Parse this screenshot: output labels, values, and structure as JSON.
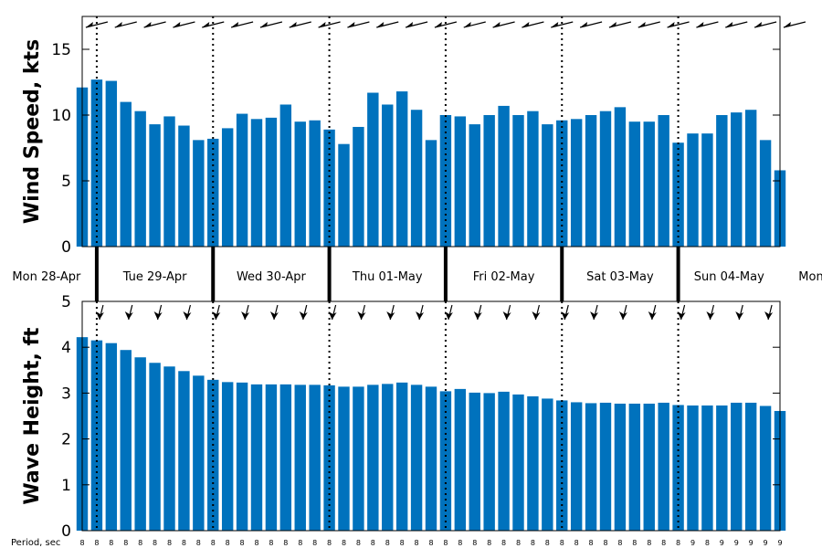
{
  "chart_data": [
    {
      "type": "bar",
      "ylabel": "Wind Speed, kts",
      "ylim": [
        0,
        17.5
      ],
      "yticks": [
        0,
        5,
        10,
        15
      ],
      "grid": false,
      "color": "#0072BD",
      "values": [
        12.1,
        12.7,
        12.6,
        11.0,
        10.3,
        9.3,
        9.9,
        9.2,
        8.1,
        8.2,
        9.0,
        10.1,
        9.7,
        9.8,
        10.8,
        9.5,
        9.6,
        8.9,
        7.8,
        9.1,
        11.7,
        10.8,
        11.8,
        10.4,
        8.1,
        10.0,
        9.9,
        9.3,
        10.0,
        10.7,
        10.0,
        10.3,
        9.3,
        9.6,
        9.7,
        10.0,
        10.3,
        10.6,
        9.5,
        9.5,
        10.0,
        7.9,
        8.6,
        8.6,
        10.0,
        10.2,
        10.4,
        8.1,
        5.8
      ],
      "direction_arrows": [
        "wind-arrow",
        "wind-arrow",
        "wind-arrow",
        "wind-arrow",
        "wind-arrow",
        "wind-arrow",
        "wind-arrow",
        "wind-arrow",
        "wind-arrow",
        "wind-arrow",
        "wind-arrow",
        "wind-arrow",
        "wind-arrow",
        "wind-arrow",
        "wind-arrow",
        "wind-arrow",
        "wind-arrow",
        "wind-arrow",
        "wind-arrow",
        "wind-arrow",
        "wind-arrow",
        "wind-arrow",
        "wind-arrow",
        "wind-arrow",
        "wind-arrow"
      ]
    },
    {
      "type": "bar",
      "ylabel": "Wave Height, ft",
      "ylim": [
        0,
        5
      ],
      "yticks": [
        0,
        1,
        2,
        3,
        4,
        5
      ],
      "grid": false,
      "color": "#0072BD",
      "values": [
        4.22,
        4.15,
        4.09,
        3.94,
        3.78,
        3.66,
        3.58,
        3.48,
        3.38,
        3.29,
        3.24,
        3.23,
        3.19,
        3.19,
        3.19,
        3.18,
        3.18,
        3.17,
        3.14,
        3.14,
        3.18,
        3.2,
        3.23,
        3.18,
        3.14,
        3.04,
        3.09,
        3.01,
        3.0,
        3.03,
        2.97,
        2.93,
        2.88,
        2.84,
        2.8,
        2.78,
        2.79,
        2.77,
        2.77,
        2.77,
        2.79,
        2.74,
        2.73,
        2.73,
        2.73,
        2.79,
        2.79,
        2.72,
        2.61
      ]
    }
  ],
  "days": [
    "Mon 28-Apr",
    "Tue 29-Apr",
    "Wed 30-Apr",
    "Thu 01-May",
    "Fri 02-May",
    "Sat 03-May",
    "Sun 04-May",
    "Mon"
  ],
  "period": {
    "label": "Period, sec",
    "values": [
      "8",
      "8",
      "8",
      "8",
      "8",
      "8",
      "8",
      "8",
      "8",
      "8",
      "8",
      "8",
      "8",
      "8",
      "8",
      "8",
      "8",
      "8",
      "8",
      "8",
      "8",
      "8",
      "8",
      "8",
      "8",
      "8",
      "8",
      "8",
      "8",
      "8",
      "8",
      "8",
      "8",
      "8",
      "8",
      "8",
      "8",
      "8",
      "8",
      "8",
      "8",
      "8",
      "9",
      "8",
      "9",
      "9",
      "9",
      "9",
      "9"
    ]
  }
}
